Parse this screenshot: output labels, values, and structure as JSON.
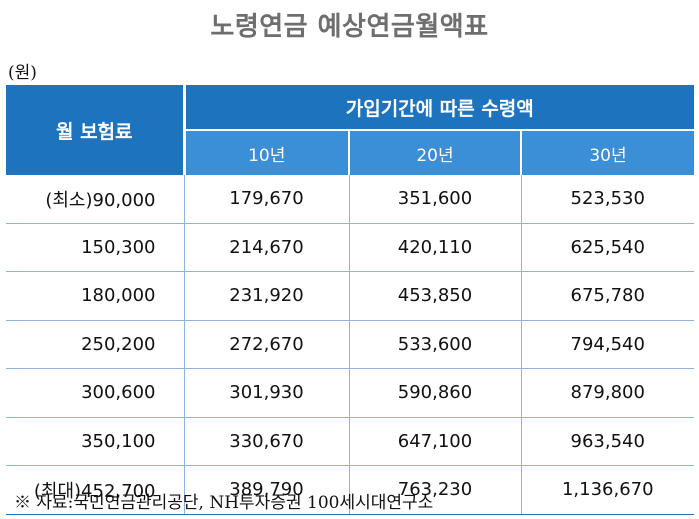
{
  "title": "노령연금 예상연금월액표",
  "unit": "(원)",
  "header": {
    "monthly_premium": "월 보험료",
    "group": "가입기간에 따른 수령액",
    "years": [
      "10년",
      "20년",
      "30년"
    ]
  },
  "rows": [
    {
      "premium": "(최소)90,000",
      "y10": "179,670",
      "y20": "351,600",
      "y30": "523,530"
    },
    {
      "premium": "150,300",
      "y10": "214,670",
      "y20": "420,110",
      "y30": "625,540"
    },
    {
      "premium": "180,000",
      "y10": "231,920",
      "y20": "453,850",
      "y30": "675,780"
    },
    {
      "premium": "250,200",
      "y10": "272,670",
      "y20": "533,600",
      "y30": "794,540"
    },
    {
      "premium": "300,600",
      "y10": "301,930",
      "y20": "590,860",
      "y30": "879,800"
    },
    {
      "premium": "350,100",
      "y10": "330,670",
      "y20": "647,100",
      "y30": "963,540"
    },
    {
      "premium": "(최대)452,700",
      "y10": "389,790",
      "y20": "763,230",
      "y30": "1,136,670"
    }
  ],
  "source": "※ 자료:국민연금관리공단, NH투자증권 100세시대연구소",
  "colors": {
    "header_dark": "#1e73be",
    "header_light": "#3a8fd6",
    "title": "#6e6e6e"
  }
}
